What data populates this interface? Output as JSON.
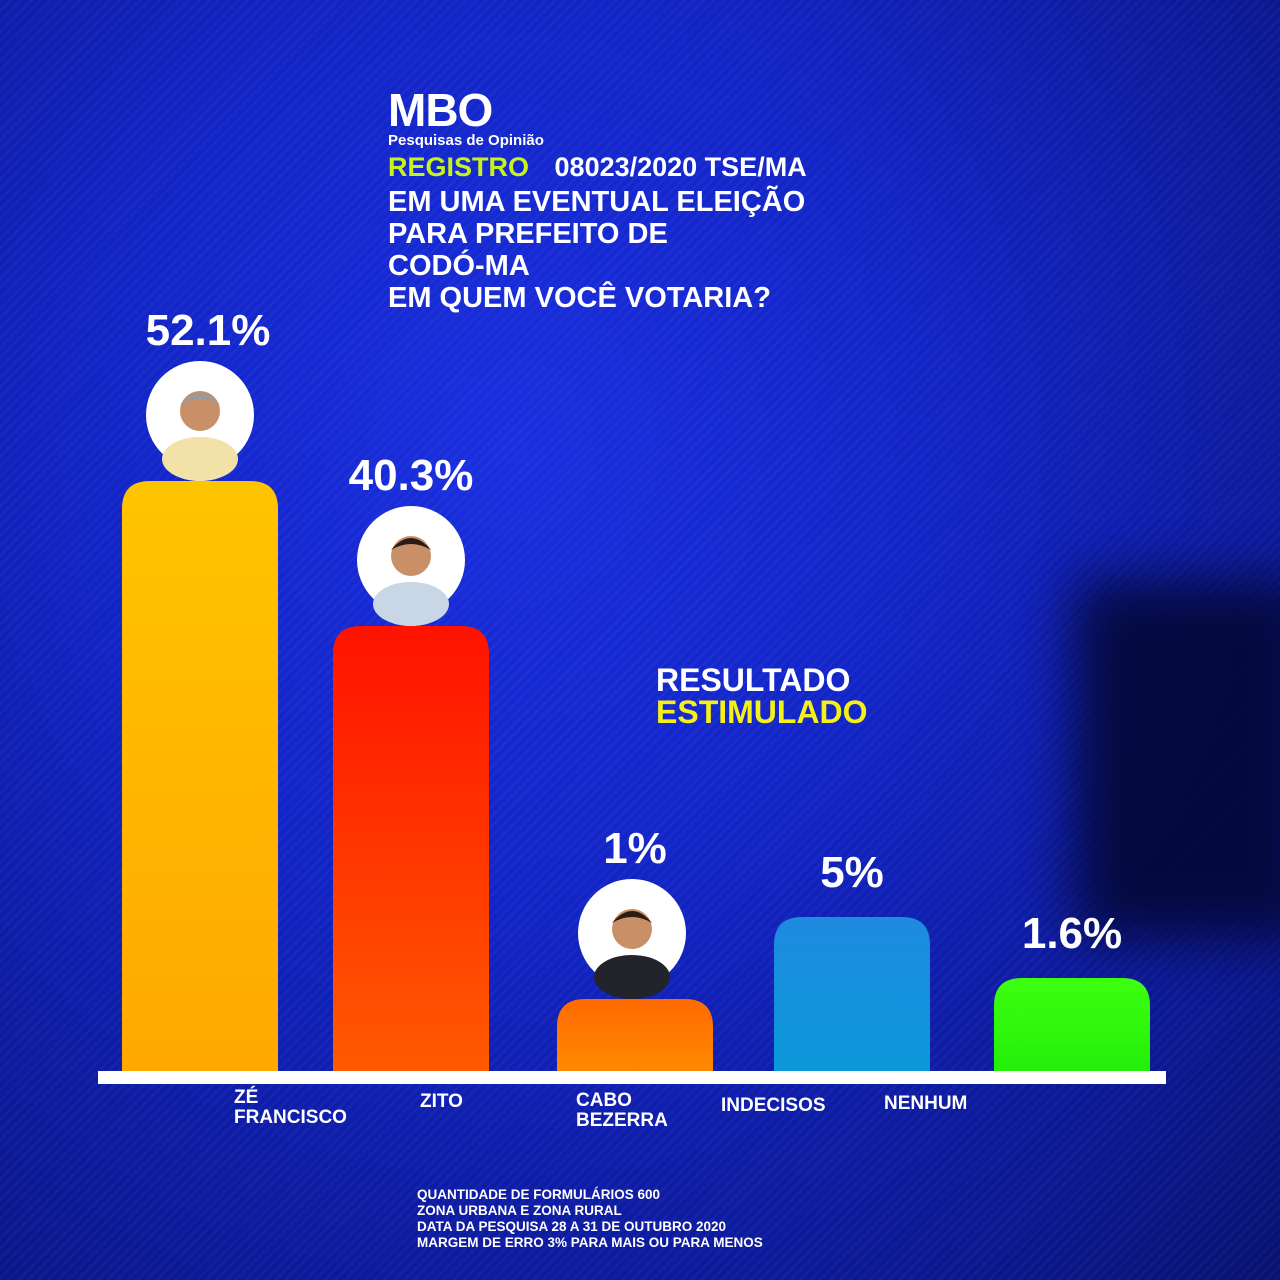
{
  "header": {
    "logo_text": "MBO",
    "logo_subtitle": "Pesquisas de Opinião",
    "registry_label": "REGISTRO",
    "registry_value": "08023/2020 TSE/MA",
    "question_lines": [
      "EM UMA EVENTUAL ELEIÇÃO",
      "PARA PREFEITO DE",
      "CODÓ-MA",
      "EM QUEM VOCÊ VOTARIA?"
    ]
  },
  "result_label": {
    "line1": "RESULTADO",
    "line2": "ESTIMULADO"
  },
  "footer_lines": [
    "QUANTIDADE  DE  FORMULÁRIOS   600",
    "ZONA URBANA E ZONA RURAL",
    "DATA DA PESQUISA 28  A 31  DE OUTUBRO 2020",
    "MARGEM DE ERRO 3% PARA MAIS  OU PARA MENOS"
  ],
  "colors": {
    "accent_green": "#c6f21e",
    "accent_yellow": "#f5f116",
    "background": "#1224c4"
  },
  "chart_data": {
    "type": "bar",
    "categories": [
      [
        "ZÉ",
        "FRANCISCO"
      ],
      [
        "ZITO"
      ],
      [
        "CABO",
        "BEZERRA"
      ],
      [
        "INDECISOS"
      ],
      [
        "NENHUM"
      ]
    ],
    "values": [
      52.1,
      40.3,
      1,
      5,
      1.6
    ],
    "value_labels": [
      "52.1%",
      "40.3%",
      "1%",
      "5%",
      "1.6%"
    ],
    "colors": [
      [
        "#ffc400",
        "#ffa800"
      ],
      [
        "#ff1200",
        "#ff5a00"
      ],
      [
        "#ff6a00",
        "#ff8a00"
      ],
      [
        "#1e8ae0",
        "#0a98d8"
      ],
      [
        "#3dff10",
        "#22ee08"
      ]
    ],
    "portraits": [
      "candidate-1-portrait",
      "candidate-2-portrait",
      "candidate-3-portrait",
      null,
      null
    ]
  }
}
